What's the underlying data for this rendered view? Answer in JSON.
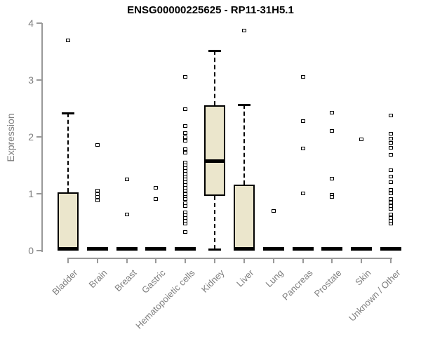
{
  "chart_data": {
    "type": "boxplot",
    "title": "ENSG00000225625 - RP11-31H5.1",
    "ylabel": "Expression",
    "xlabel": "",
    "ylim": [
      0,
      4
    ],
    "yticks": [
      0,
      1,
      2,
      3,
      4
    ],
    "grid": false,
    "legend": "none",
    "colors": {
      "box_fill": "#EBE6CC",
      "box_border": "#000000",
      "axis": "#999999",
      "text_gray": "#7E7E7E",
      "title_color": "#000000"
    },
    "categories": [
      "Bladder",
      "Brain",
      "Breast",
      "Gastric",
      "Hematopoietic cells",
      "Kidney",
      "Liver",
      "Lung",
      "Pancreas",
      "Prostate",
      "Skin",
      "Unknown / Other"
    ],
    "series": [
      {
        "category": "Bladder",
        "low": 0,
        "q1": 0,
        "median": 0.03,
        "q3": 1.03,
        "high": 2.42,
        "outliers": [
          3.7
        ]
      },
      {
        "category": "Brain",
        "low": 0,
        "q1": 0,
        "median": 0.03,
        "q3": 0.06,
        "high": 0.06,
        "outliers": [
          1.86,
          1.05,
          0.99,
          0.94,
          0.88
        ]
      },
      {
        "category": "Breast",
        "low": 0,
        "q1": 0,
        "median": 0.03,
        "q3": 0.06,
        "high": 0.06,
        "outliers": [
          1.25,
          0.64
        ]
      },
      {
        "category": "Gastric",
        "low": 0,
        "q1": 0,
        "median": 0.03,
        "q3": 0.06,
        "high": 0.06,
        "outliers": [
          1.1,
          0.91
        ]
      },
      {
        "category": "Hematopoietic cells",
        "low": 0,
        "q1": 0,
        "median": 0.03,
        "q3": 0.06,
        "high": 0.06,
        "outliers": [
          3.05,
          2.49,
          2.19,
          2.07,
          2.0,
          1.93,
          1.79,
          1.72,
          1.55,
          1.5,
          1.45,
          1.4,
          1.35,
          1.3,
          1.25,
          1.2,
          1.15,
          1.11,
          1.05,
          1.0,
          0.95,
          0.91,
          0.83,
          0.78,
          0.67,
          0.62,
          0.58,
          0.52,
          0.47,
          0.33
        ]
      },
      {
        "category": "Kidney",
        "low": 0.02,
        "q1": 0.96,
        "median": 1.58,
        "q3": 2.56,
        "high": 3.52,
        "outliers": []
      },
      {
        "category": "Liver",
        "low": 0,
        "q1": 0,
        "median": 0.03,
        "q3": 1.16,
        "high": 2.57,
        "outliers": [
          3.87
        ]
      },
      {
        "category": "Lung",
        "low": 0,
        "q1": 0,
        "median": 0.03,
        "q3": 0.06,
        "high": 0.06,
        "outliers": [
          0.7
        ]
      },
      {
        "category": "Pancreas",
        "low": 0,
        "q1": 0,
        "median": 0.03,
        "q3": 0.06,
        "high": 0.06,
        "outliers": [
          3.05,
          2.28,
          1.8,
          1.01
        ]
      },
      {
        "category": "Prostate",
        "low": 0,
        "q1": 0,
        "median": 0.03,
        "q3": 0.06,
        "high": 0.06,
        "outliers": [
          2.43,
          2.11,
          1.26,
          0.98,
          0.94
        ]
      },
      {
        "category": "Skin",
        "low": 0,
        "q1": 0,
        "median": 0.03,
        "q3": 0.06,
        "high": 0.06,
        "outliers": [
          1.96
        ]
      },
      {
        "category": "Unknown / Other",
        "low": 0,
        "q1": 0,
        "median": 0.03,
        "q3": 0.06,
        "high": 0.06,
        "outliers": [
          2.38,
          2.06,
          1.97,
          1.9,
          1.81,
          1.69,
          1.41,
          1.3,
          1.2,
          1.07,
          1.01,
          0.91,
          0.85,
          0.79,
          0.74,
          0.64,
          0.58,
          0.53,
          0.48
        ]
      }
    ]
  }
}
